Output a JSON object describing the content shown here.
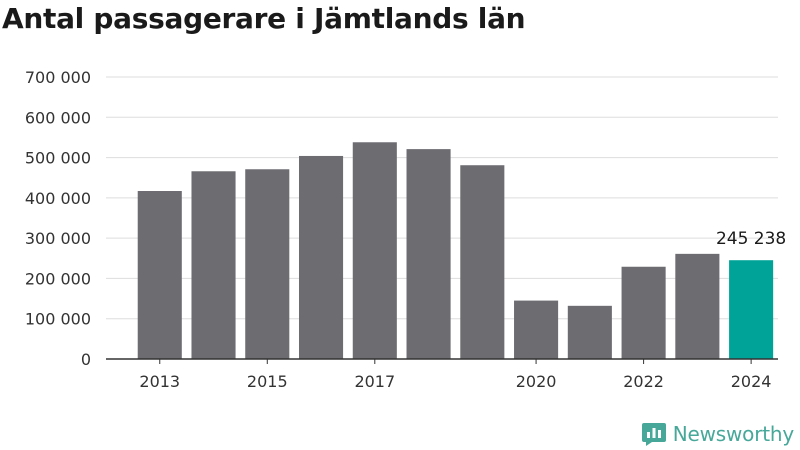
{
  "title": "Antal passagerare i Jämtlands län",
  "brand": {
    "name": "Newsworthy"
  },
  "colors": {
    "bar": "#6d6c71",
    "highlight": "#00a398",
    "grid": "#dddddd",
    "axis": "#333333",
    "brand": "#47a89a"
  },
  "chart_data": {
    "type": "bar",
    "title": "Antal passagerare i Jämtlands län",
    "xlabel": "",
    "ylabel": "",
    "x": [
      2013,
      2014,
      2015,
      2016,
      2017,
      2018,
      2019,
      2020,
      2021,
      2022,
      2023,
      2024
    ],
    "values": [
      417000,
      466000,
      471000,
      504000,
      538000,
      521000,
      481000,
      145000,
      132000,
      229000,
      261000,
      245238
    ],
    "x_tick_labels": [
      {
        "year": 2013,
        "label": "2013"
      },
      {
        "year": 2015,
        "label": "2015"
      },
      {
        "year": 2017,
        "label": "2017"
      },
      {
        "year": 2020,
        "label": "2020"
      },
      {
        "year": 2022,
        "label": "2022"
      },
      {
        "year": 2024,
        "label": "2024"
      }
    ],
    "y_ticks": [
      0,
      100000,
      200000,
      300000,
      400000,
      500000,
      600000,
      700000
    ],
    "y_tick_labels": [
      "0",
      "100 000",
      "200 000",
      "300 000",
      "400 000",
      "500 000",
      "600 000",
      "700 000"
    ],
    "ylim": [
      0,
      700000
    ],
    "highlight_year": 2024,
    "annotation": {
      "year": 2024,
      "text": "245 238"
    },
    "grid": true,
    "legend": "none"
  }
}
